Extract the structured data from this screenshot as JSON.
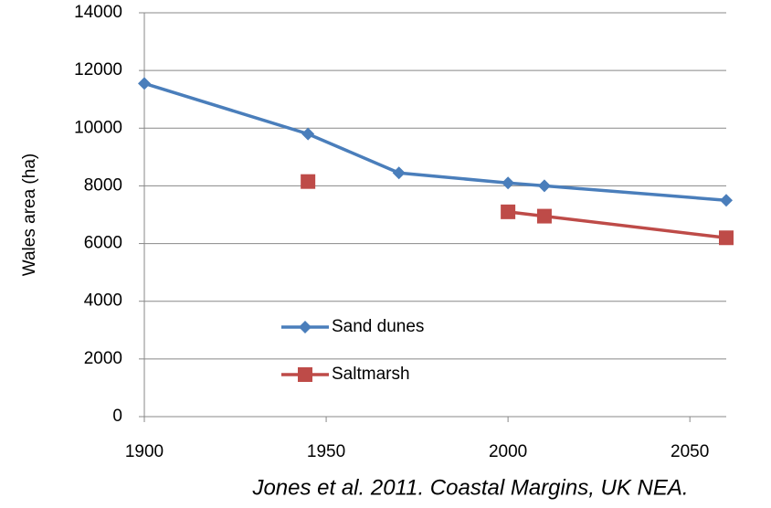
{
  "chart_data": {
    "type": "line",
    "y_label": "Wales area (ha)",
    "annotation": "Jones et al. 2011. Coastal Margins, UK NEA.",
    "x": [
      1900,
      1945,
      1970,
      2000,
      2010,
      2060
    ],
    "series": [
      {
        "name": "Sand dunes",
        "color": "#4a7ebb",
        "marker": "diamond",
        "values": [
          11550,
          9800,
          8450,
          8100,
          8000,
          7500
        ]
      },
      {
        "name": "Saltmarsh",
        "color": "#be4b48",
        "marker": "square",
        "values": [
          null,
          8150,
          null,
          7100,
          6950,
          6200
        ]
      }
    ],
    "xlim": [
      1900,
      2060
    ],
    "xticks": [
      1900,
      1950,
      2000,
      2050
    ],
    "ylim": [
      0,
      14000
    ],
    "yticks": [
      0,
      2000,
      4000,
      6000,
      8000,
      10000,
      12000,
      14000
    ],
    "grid": true,
    "legend": "lower-left"
  }
}
